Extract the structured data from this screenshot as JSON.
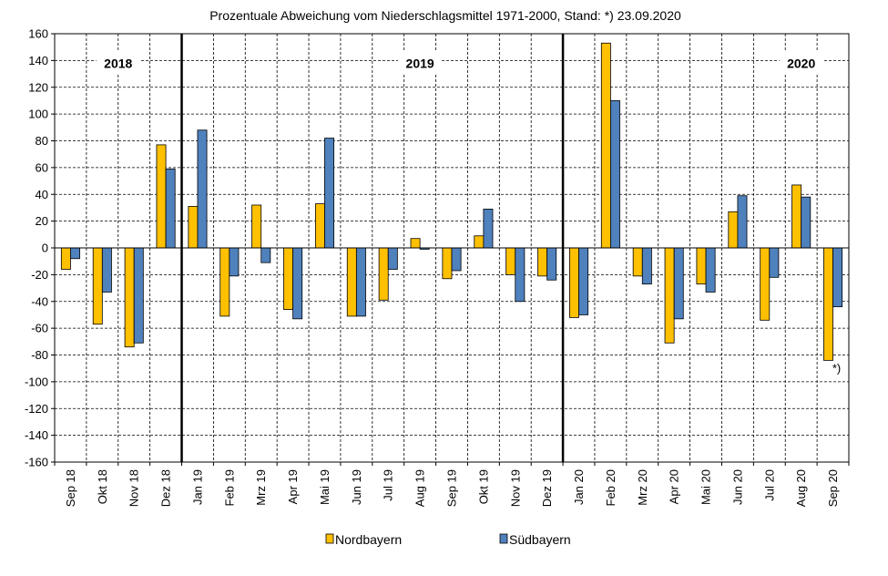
{
  "chart_data": {
    "type": "bar",
    "title": "Prozentuale Abweichung vom Niederschlagsmittel 1971-2000, Stand: *) 23.09.2020",
    "categories": [
      "Sep 18",
      "Okt 18",
      "Nov 18",
      "Dez 18",
      "Jan 19",
      "Feb 19",
      "Mrz 19",
      "Apr 19",
      "Mai 19",
      "Jun 19",
      "Jul 19",
      "Aug 19",
      "Sep 19",
      "Okt 19",
      "Nov 19",
      "Dez 19",
      "Jan 20",
      "Feb 20",
      "Mrz 20",
      "Apr 20",
      "Mai 20",
      "Jun 20",
      "Jul 20",
      "Aug 20",
      "Sep 20"
    ],
    "series": [
      {
        "name": "Nordbayern",
        "color": "#FFC000",
        "values": [
          -16,
          -57,
          -74,
          77,
          31,
          -51,
          32,
          -46,
          33,
          -51,
          -39,
          7,
          -23,
          9,
          -20,
          -21,
          -52,
          153,
          -21,
          -71,
          -27,
          27,
          -54,
          47,
          -84
        ]
      },
      {
        "name": "Südbayern",
        "color": "#4F81BD",
        "values": [
          -8,
          -33,
          -71,
          59,
          88,
          -21,
          -11,
          -53,
          82,
          -51,
          -16,
          -1,
          -17,
          29,
          -40,
          -24,
          -50,
          110,
          -27,
          -53,
          -33,
          39,
          -22,
          38,
          -44
        ]
      }
    ],
    "ylim": [
      -160,
      160
    ],
    "yticks": [
      160,
      140,
      120,
      100,
      80,
      60,
      40,
      20,
      0,
      -20,
      -40,
      -60,
      -80,
      -100,
      -120,
      -140,
      -160
    ],
    "grid": true,
    "legend_position": "bottom",
    "year_labels": [
      {
        "text": "2018",
        "category": "Okt 18"
      },
      {
        "text": "2019",
        "category": "Aug 19"
      },
      {
        "text": "2020",
        "category": "Aug 20"
      }
    ],
    "year_separators_after": [
      "Dez 18",
      "Dez 19"
    ],
    "annotation": {
      "text": "*)",
      "category": "Sep 20"
    }
  }
}
